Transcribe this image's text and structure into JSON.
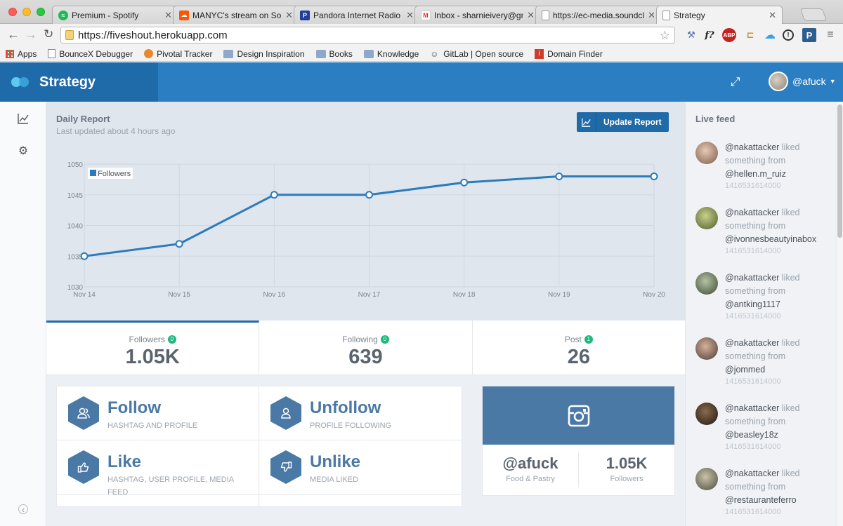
{
  "browser": {
    "tabs": [
      {
        "title": "Premium - Spotify",
        "icon": "spotify-icon",
        "color": "#1db954",
        "active": false
      },
      {
        "title": "MANYC's stream on Soun",
        "icon": "soundcloud-icon",
        "color": "#ff5500",
        "active": false
      },
      {
        "title": "Pandora Internet Radio - L",
        "icon": "pandora-icon",
        "color": "#224099",
        "active": false
      },
      {
        "title": "Inbox - sharnieivery@gma",
        "icon": "gmail-icon",
        "color": "#d93025",
        "active": false
      },
      {
        "title": "https://ec-media.soundclo",
        "icon": "page-icon",
        "color": "#ffffff",
        "active": false
      },
      {
        "title": "Strategy",
        "icon": "page-icon",
        "color": "#ffffff",
        "active": true
      }
    ],
    "url": "https://fiveshout.herokuapp.com",
    "bookmarks": [
      {
        "label": "Apps",
        "icon": "apps-grid-icon"
      },
      {
        "label": "BounceX Debugger",
        "icon": "page-icon"
      },
      {
        "label": "Pivotal Tracker",
        "icon": "pivotal-icon"
      },
      {
        "label": "Design Inspiration",
        "icon": "folder-icon"
      },
      {
        "label": "Books",
        "icon": "folder-icon"
      },
      {
        "label": "Knowledge",
        "icon": "folder-icon"
      },
      {
        "label": "GitLab | Open source",
        "icon": "gitlab-icon"
      },
      {
        "label": "Domain Finder",
        "icon": "domain-finder-icon"
      }
    ],
    "extensions": [
      "f?",
      "ABP",
      "P"
    ]
  },
  "header": {
    "brand": "Strategy",
    "username": "@afuck"
  },
  "report": {
    "title": "Daily Report",
    "subtitle": "Last updated about 4 hours ago",
    "update_button": "Update Report"
  },
  "chart_data": {
    "type": "line",
    "x": [
      "Nov 14",
      "Nov 15",
      "Nov 16",
      "Nov 17",
      "Nov 18",
      "Nov 19",
      "Nov 20"
    ],
    "series": [
      {
        "name": "Followers",
        "values": [
          1035,
          1037,
          1045,
          1045,
          1047,
          1048,
          1048
        ],
        "color": "#2c7bbd"
      }
    ],
    "ylim": [
      1030,
      1050
    ],
    "yticks": [
      1030,
      1035,
      1040,
      1045,
      1050
    ],
    "grid": true,
    "legend": "top-left",
    "xlabel": "",
    "ylabel": ""
  },
  "stats": [
    {
      "label": "Followers",
      "badge": "0",
      "value": "1.05K"
    },
    {
      "label": "Following",
      "badge": "0",
      "value": "639"
    },
    {
      "label": "Post",
      "badge": "1",
      "value": "26"
    }
  ],
  "actions": [
    {
      "name": "Follow",
      "desc": "HASHTAG AND PROFILE",
      "icon": "users-icon"
    },
    {
      "name": "Unfollow",
      "desc": "PROFILE FOLLOWING",
      "icon": "user-icon"
    },
    {
      "name": "Like",
      "desc": "HASHTAG, USER PROFILE, MEDIA FEED",
      "icon": "thumbs-up-icon"
    },
    {
      "name": "Unlike",
      "desc": "MEDIA LIKED",
      "icon": "thumbs-down-icon"
    }
  ],
  "instagram": {
    "handle": "@afuck",
    "category": "Food & Pastry",
    "followers_value": "1.05K",
    "followers_label": "Followers"
  },
  "feed": {
    "title": "Live feed",
    "items": [
      {
        "actor": "@nakattacker",
        "action": "liked",
        "middle": "something from",
        "target": "@hellen.m_ruiz",
        "timestamp": "1416531614000"
      },
      {
        "actor": "@nakattacker",
        "action": "liked",
        "middle": "something from",
        "target": "@ivonnesbeautyinabox",
        "timestamp": "1416531614000"
      },
      {
        "actor": "@nakattacker",
        "action": "liked",
        "middle": "something from",
        "target": "@antking1117",
        "timestamp": "1416531614000"
      },
      {
        "actor": "@nakattacker",
        "action": "liked",
        "middle": "something from",
        "target": "@jommed",
        "timestamp": "1416531614000"
      },
      {
        "actor": "@nakattacker",
        "action": "liked",
        "middle": "something from",
        "target": "@beasley18z",
        "timestamp": "1416531614000"
      },
      {
        "actor": "@nakattacker",
        "action": "liked",
        "middle": "something from",
        "target": "@restauranteferro",
        "timestamp": "1416531614000"
      }
    ]
  }
}
